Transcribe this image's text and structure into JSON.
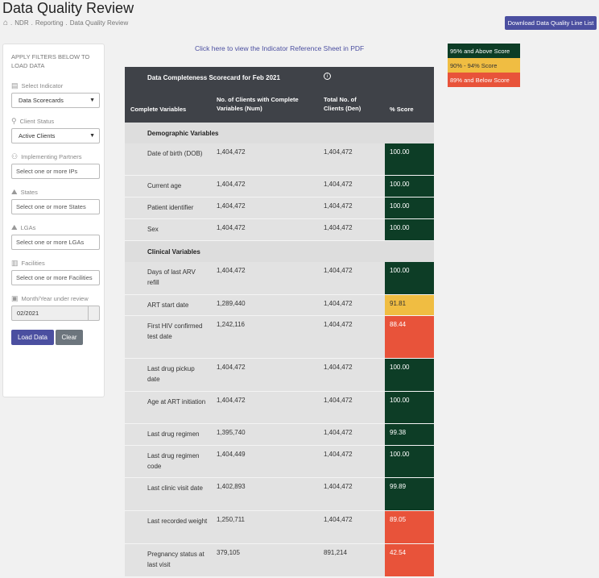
{
  "header": {
    "title": "Data Quality Review",
    "breadcrumb": [
      "NDR",
      "Reporting",
      "Data Quality Review"
    ],
    "download_label": "Download Data Quality Line List"
  },
  "filters": {
    "hint": "APPLY FILTERS BELOW TO LOAD DATA",
    "indicator_label": "Select Indicator",
    "indicator_value": "Data Scorecards",
    "status_label": "Client Status",
    "status_value": "Active Clients",
    "ip_label": "Implementing Partners",
    "ip_placeholder": "Select one or more IPs",
    "states_label": "States",
    "states_placeholder": "Select one or more States",
    "lgas_label": "LGAs",
    "lgas_placeholder": "Select one or more LGAs",
    "facilities_label": "Facilities",
    "facilities_placeholder": "Select one or more Facilities",
    "month_label": "Month/Year under review",
    "month_value": "02/2021",
    "load_label": "Load Data",
    "clear_label": "Clear"
  },
  "reference_link": "Click here to view the Indicator Reference Sheet in PDF",
  "legend": {
    "green": "95% and Above Score",
    "yellow": "90% - 94% Score",
    "red": "89% and Below Score",
    "colors": {
      "green": "#0d3d26",
      "yellow": "#f0bd42",
      "red": "#e8533a"
    }
  },
  "table": {
    "title": "Data Completeness Scorecard for Feb 2021",
    "info_glyph": "i",
    "headers": [
      "Complete Variables",
      "No. of Clients with Complete Variables (Num)",
      "Total No. of Clients (Den)",
      "% Score"
    ],
    "demographic_label": "Demographic Variables",
    "clinical_label": "Clinical Variables",
    "demographic": [
      {
        "name": "Date of birth (DOB)",
        "num": "1,404,472",
        "den": "1,404,472",
        "score": "100.00",
        "level": "green"
      },
      {
        "name": "Current age",
        "num": "1,404,472",
        "den": "1,404,472",
        "score": "100.00",
        "level": "green"
      },
      {
        "name": "Patient identifier",
        "num": "1,404,472",
        "den": "1,404,472",
        "score": "100.00",
        "level": "green"
      },
      {
        "name": "Sex",
        "num": "1,404,472",
        "den": "1,404,472",
        "score": "100.00",
        "level": "green"
      }
    ],
    "clinical": [
      {
        "name": "Days of last ARV refill",
        "num": "1,404,472",
        "den": "1,404,472",
        "score": "100.00",
        "level": "green"
      },
      {
        "name": "ART start date",
        "num": "1,289,440",
        "den": "1,404,472",
        "score": "91.81",
        "level": "yellow"
      },
      {
        "name": "First HIV confirmed test date",
        "num": "1,242,116",
        "den": "1,404,472",
        "score": "88.44",
        "level": "red"
      },
      {
        "name": "Last drug pickup date",
        "num": "1,404,472",
        "den": "1,404,472",
        "score": "100.00",
        "level": "green"
      },
      {
        "name": "Age at ART initiation",
        "num": "1,404,472",
        "den": "1,404,472",
        "score": "100.00",
        "level": "green"
      },
      {
        "name": "Last drug regimen",
        "num": "1,395,740",
        "den": "1,404,472",
        "score": "99.38",
        "level": "green"
      },
      {
        "name": "Last drug regimen code",
        "num": "1,404,449",
        "den": "1,404,472",
        "score": "100.00",
        "level": "green"
      },
      {
        "name": "Last clinic visit date",
        "num": "1,402,893",
        "den": "1,404,472",
        "score": "99.89",
        "level": "green"
      },
      {
        "name": "Last recorded weight",
        "num": "1,250,711",
        "den": "1,404,472",
        "score": "89.05",
        "level": "red"
      },
      {
        "name": "Pregnancy status at last visit",
        "num": "379,105",
        "den": "891,214",
        "score": "42.54",
        "level": "red"
      }
    ]
  }
}
